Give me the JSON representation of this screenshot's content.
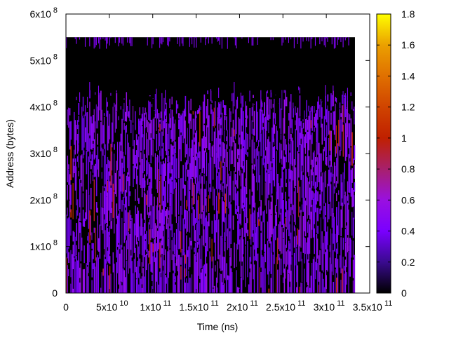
{
  "chart_data": {
    "type": "heatmap",
    "title": "",
    "xlabel": "Time (ns)",
    "ylabel": "Address (bytes)",
    "xlim": [
      0,
      350000000000.0
    ],
    "ylim": [
      0,
      600000000.0
    ],
    "data_extent": {
      "x": [
        0,
        333000000000.0
      ],
      "y": [
        0,
        550000000.0
      ]
    },
    "dense_region_top": 420000000.0,
    "typical_value": 0.45,
    "xticks": [
      {
        "value": 0,
        "base": "0",
        "exp": ""
      },
      {
        "value": 50000000000.0,
        "base": "5x10",
        "exp": "10"
      },
      {
        "value": 100000000000.0,
        "base": "1x10",
        "exp": "11"
      },
      {
        "value": 150000000000.0,
        "base": "1.5x10",
        "exp": "11"
      },
      {
        "value": 200000000000.0,
        "base": "2x10",
        "exp": "11"
      },
      {
        "value": 250000000000.0,
        "base": "2.5x10",
        "exp": "11"
      },
      {
        "value": 300000000000.0,
        "base": "3x10",
        "exp": "11"
      },
      {
        "value": 350000000000.0,
        "base": "3.5x10",
        "exp": "11"
      }
    ],
    "yticks": [
      {
        "value": 0,
        "base": "0",
        "exp": ""
      },
      {
        "value": 100000000.0,
        "base": "1x10",
        "exp": "8"
      },
      {
        "value": 200000000.0,
        "base": "2x10",
        "exp": "8"
      },
      {
        "value": 300000000.0,
        "base": "3x10",
        "exp": "8"
      },
      {
        "value": 400000000.0,
        "base": "4x10",
        "exp": "8"
      },
      {
        "value": 500000000.0,
        "base": "5x10",
        "exp": "8"
      },
      {
        "value": 600000000.0,
        "base": "6x10",
        "exp": "8"
      }
    ],
    "colorbar": {
      "range": [
        0,
        1.8
      ],
      "ticks": [
        "0",
        "0.2",
        "0.4",
        "0.6",
        "0.8",
        "1",
        "1.2",
        "1.4",
        "1.6",
        "1.8"
      ],
      "palette": [
        "#000000",
        "#3a0a8f",
        "#7a00ff",
        "#9a10e0",
        "#a8206c",
        "#c02000",
        "#d04400",
        "#e07000",
        "#eba000",
        "#ffff00"
      ]
    },
    "grid": false,
    "legend": "none"
  }
}
